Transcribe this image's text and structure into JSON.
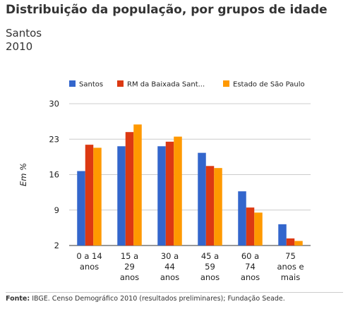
{
  "header": {
    "title": "Distribuição da população, por grupos de idade",
    "subtitle_line1": "Santos",
    "subtitle_line2": "2010"
  },
  "footer": {
    "source_label": "Fonte:",
    "source_text": " IBGE. Censo Demográfico 2010 (resultados preliminares); Fundação Seade."
  },
  "chart_data": {
    "type": "bar",
    "ylabel": "Em %",
    "xlabel": "",
    "ylim": [
      2,
      30
    ],
    "yticks": [
      2,
      9,
      16,
      23,
      30
    ],
    "grid": true,
    "legend_position": "top",
    "categories": [
      [
        "0 a 14",
        "anos"
      ],
      [
        "15 a",
        "29",
        "anos"
      ],
      [
        "30 a",
        "44",
        "anos"
      ],
      [
        "45 a",
        "59",
        "anos"
      ],
      [
        "60 a",
        "74",
        "anos"
      ],
      [
        "75",
        "anos e",
        "mais"
      ]
    ],
    "series": [
      {
        "name": "Santos",
        "color": "#3366cc",
        "values": [
          16.7,
          21.6,
          21.6,
          20.3,
          12.7,
          6.2
        ]
      },
      {
        "name": "RM da Baixada Sant...",
        "color": "#dc3912",
        "values": [
          21.9,
          24.4,
          22.5,
          17.7,
          9.5,
          3.4
        ]
      },
      {
        "name": "Estado de São Paulo",
        "color": "#ff9900",
        "values": [
          21.3,
          25.9,
          23.5,
          17.3,
          8.5,
          2.9
        ]
      }
    ]
  }
}
